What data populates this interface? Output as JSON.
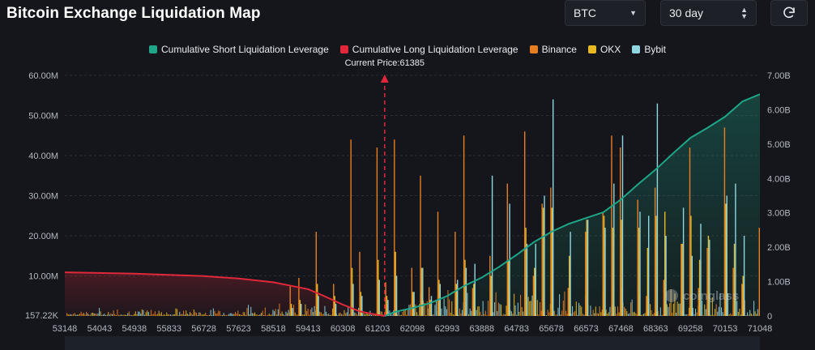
{
  "header": {
    "title": "Bitcoin Exchange Liquidation Map",
    "coin_select": "BTC",
    "period_select": "30 day",
    "refresh_icon": "refresh-icon",
    "caret_icon": "chevron-down-icon"
  },
  "colors": {
    "background": "#14161b",
    "short_cum": "#1fa587",
    "long_cum": "#e0283a",
    "binance": "#e67e22",
    "okx": "#e8b923",
    "bybit": "#8fd6e1",
    "current_price_line": "#e0283a"
  },
  "watermark": "coinglass",
  "chart_data": {
    "type": "bar",
    "title": "Bitcoin Exchange Liquidation Map",
    "current_price_label": "Current Price:61385",
    "current_price": 61385,
    "x_ticks": [
      "53148",
      "54043",
      "54938",
      "55833",
      "56728",
      "57623",
      "58518",
      "59413",
      "60308",
      "61203",
      "62098",
      "62993",
      "63888",
      "64783",
      "65678",
      "66573",
      "67468",
      "68363",
      "69258",
      "70153",
      "71048"
    ],
    "x_range": [
      53148,
      71048
    ],
    "y_left_ticks": [
      "157.22K",
      "10.00M",
      "20.00M",
      "30.00M",
      "40.00M",
      "50.00M",
      "60.00M"
    ],
    "y_left_values": [
      157220,
      10000000,
      20000000,
      30000000,
      40000000,
      50000000,
      60000000
    ],
    "y_left_range": [
      0,
      60000000
    ],
    "y_right_ticks": [
      "0",
      "1.00B",
      "2.00B",
      "3.00B",
      "4.00B",
      "5.00B",
      "6.00B",
      "7.00B"
    ],
    "y_right_range": [
      0,
      7000000000
    ],
    "legend": [
      {
        "name": "Cumulative Short Liquidation Leverage",
        "color": "#1fa587"
      },
      {
        "name": "Cumulative Long Liquidation Leverage",
        "color": "#e0283a"
      },
      {
        "name": "Binance",
        "color": "#e67e22"
      },
      {
        "name": "OKX",
        "color": "#e8b923"
      },
      {
        "name": "Bybit",
        "color": "#8fd6e1"
      }
    ],
    "cumulative_long": {
      "name": "Cumulative Long Liquidation Leverage",
      "axis": "right",
      "x": [
        53148,
        54938,
        56728,
        57623,
        58518,
        59413,
        59861,
        60308,
        60757,
        61203,
        61385
      ],
      "y": [
        1270000000,
        1230000000,
        1160000000,
        1090000000,
        980000000,
        780000000,
        560000000,
        330000000,
        130000000,
        30000000,
        0
      ]
    },
    "cumulative_short": {
      "name": "Cumulative Short Liquidation Leverage",
      "axis": "right",
      "x": [
        61385,
        61650,
        62098,
        62545,
        62993,
        63440,
        63888,
        64335,
        64783,
        65230,
        65678,
        66125,
        66573,
        67020,
        67468,
        67916,
        68363,
        68811,
        69258,
        69706,
        70153,
        70600,
        71048
      ],
      "y": [
        0,
        120000000,
        230000000,
        370000000,
        580000000,
        880000000,
        1120000000,
        1430000000,
        1780000000,
        2150000000,
        2450000000,
        2680000000,
        2850000000,
        3020000000,
        3390000000,
        3840000000,
        4260000000,
        4730000000,
        5180000000,
        5480000000,
        5800000000,
        6240000000,
        6450000000
      ]
    },
    "highlight_bars": {
      "axis": "left",
      "x": [
        58966,
        59190,
        59637,
        60085,
        60532,
        60756,
        61203,
        61426,
        61650,
        62098,
        62322,
        62545,
        62769,
        63216,
        63440,
        63664,
        64111,
        64559,
        65007,
        65230,
        65454,
        65678,
        66125,
        66573,
        67020,
        67244,
        67468,
        67916,
        68139,
        68363,
        68587,
        69034,
        69258,
        69482,
        69706,
        70153,
        70377,
        70600,
        71048
      ],
      "binance": [
        7600000,
        9500000,
        21000000,
        8000000,
        44000000,
        16000000,
        42000000,
        8400000,
        44000000,
        12000000,
        35000000,
        7200000,
        26000000,
        21000000,
        45000000,
        7000000,
        15000000,
        33000000,
        46000000,
        10000000,
        28000000,
        32000000,
        7000000,
        21000000,
        26000000,
        45000000,
        42000000,
        29000000,
        5000000,
        32000000,
        9000000,
        18000000,
        42000000,
        7000000,
        17000000,
        47000000,
        12000000,
        8000000,
        22000000
      ],
      "okx": [
        3000000,
        4000000,
        8000000,
        5000000,
        12000000,
        6000000,
        14000000,
        5000000,
        16000000,
        6000000,
        12000000,
        4000000,
        9000000,
        8000000,
        14000000,
        8000000,
        10000000,
        14000000,
        22000000,
        12000000,
        27000000,
        27000000,
        15000000,
        24000000,
        25000000,
        22000000,
        24000000,
        22000000,
        17000000,
        25000000,
        26000000,
        18000000,
        25000000,
        14000000,
        20000000,
        28000000,
        18000000,
        10000000,
        12000000
      ],
      "bybit": [
        2000000,
        3000000,
        5000000,
        3000000,
        8000000,
        5000000,
        9000000,
        4000000,
        10000000,
        6000000,
        12000000,
        5000000,
        8000000,
        9000000,
        12000000,
        13000000,
        35000000,
        28000000,
        18000000,
        18000000,
        30000000,
        54000000,
        21000000,
        24000000,
        22000000,
        33000000,
        45000000,
        26000000,
        25000000,
        53000000,
        20000000,
        27000000,
        15000000,
        23000000,
        19000000,
        30000000,
        33000000,
        20000000,
        18000000
      ]
    }
  }
}
